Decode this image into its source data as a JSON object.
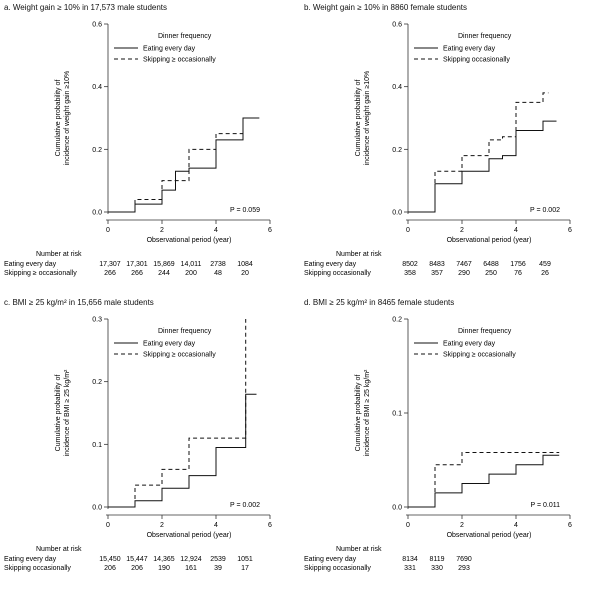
{
  "panels": [
    {
      "id": "a",
      "title": "a. Weight gain ≥ 10% in 17,573 male students",
      "chart_data": {
        "type": "line",
        "step": true,
        "ylabel": "Cumulative probability of incidence of weight gain ≥10%",
        "xlabel": "Observational period (year)",
        "xlim": [
          0,
          6
        ],
        "ylim": [
          0,
          0.6
        ],
        "xticks": [
          0,
          2,
          4,
          6
        ],
        "yticks": [
          0,
          0.2,
          0.4,
          0.6
        ],
        "ytick_labels": [
          "0.0",
          "0.2",
          "0.4",
          "0.6"
        ],
        "legend_title": "Dinner frequency",
        "series": [
          {
            "name": "Eating every day",
            "dash": "solid",
            "x": [
              0,
              1,
              2,
              2.5,
              3,
              4,
              5,
              5.6
            ],
            "y": [
              0,
              0.025,
              0.07,
              0.13,
              0.14,
              0.23,
              0.3,
              0.3
            ]
          },
          {
            "name": "Skipping ≥ occasionally",
            "dash": "dashed",
            "x": [
              0,
              1,
              2,
              3,
              4,
              5,
              5.6
            ],
            "y": [
              0,
              0.04,
              0.1,
              0.2,
              0.25,
              0.3,
              0.3
            ]
          }
        ],
        "pvalue": "P = 0.059",
        "risk": {
          "heading": "Number at risk",
          "rows": [
            {
              "label": "Eating every day",
              "values": [
                "17,307",
                "17,301",
                "15,869",
                "14,011",
                "2738",
                "1084"
              ]
            },
            {
              "label": "Skipping ≥ occasionally",
              "values": [
                "266",
                "266",
                "244",
                "200",
                "48",
                "20"
              ]
            }
          ]
        }
      }
    },
    {
      "id": "b",
      "title": "b. Weight gain ≥ 10% in 8860 female students",
      "chart_data": {
        "type": "line",
        "step": true,
        "ylabel": "Cumulative probability of incidence of weight gain ≥10%",
        "xlabel": "Observational period (year)",
        "xlim": [
          0,
          6
        ],
        "ylim": [
          0,
          0.6
        ],
        "xticks": [
          0,
          2,
          4,
          6
        ],
        "yticks": [
          0,
          0.2,
          0.4,
          0.6
        ],
        "ytick_labels": [
          "0.0",
          "0.2",
          "0.4",
          "0.6"
        ],
        "legend_title": "Dinner frequency",
        "series": [
          {
            "name": "Eating every day",
            "dash": "solid",
            "x": [
              0,
              1,
              2,
              3,
              3.5,
              4,
              5,
              5.5
            ],
            "y": [
              0,
              0.09,
              0.13,
              0.17,
              0.18,
              0.26,
              0.29,
              0.29
            ]
          },
          {
            "name": "Skipping occasionally",
            "dash": "dashed",
            "x": [
              0,
              1,
              2,
              3,
              3.5,
              4,
              5,
              5.2
            ],
            "y": [
              0,
              0.13,
              0.18,
              0.23,
              0.24,
              0.35,
              0.38,
              0.38
            ]
          }
        ],
        "pvalue": "P = 0.002",
        "risk": {
          "heading": "Number at risk",
          "rows": [
            {
              "label": "Eating every day",
              "values": [
                "8502",
                "8483",
                "7467",
                "6488",
                "1756",
                "459"
              ]
            },
            {
              "label": "Skipping occasionally",
              "values": [
                "358",
                "357",
                "290",
                "250",
                "76",
                "26"
              ]
            }
          ]
        }
      }
    },
    {
      "id": "c",
      "title": "c. BMI ≥ 25 kg/m² in 15,656 male students",
      "chart_data": {
        "type": "line",
        "step": true,
        "ylabel": "Cumulative probability of incidence of BMI ≥ 25 kg/m²",
        "xlabel": "Observational period (year)",
        "xlim": [
          0,
          6
        ],
        "ylim": [
          0,
          0.3
        ],
        "xticks": [
          0,
          2,
          4,
          6
        ],
        "yticks": [
          0,
          0.1,
          0.2,
          0.3
        ],
        "ytick_labels": [
          "0.0",
          "0.1",
          "0.2",
          "0.3"
        ],
        "legend_title": "Dinner frequency",
        "series": [
          {
            "name": "Eating every day",
            "dash": "solid",
            "x": [
              0,
              1,
              2,
              3,
              4,
              5.1,
              5.5
            ],
            "y": [
              0,
              0.01,
              0.03,
              0.05,
              0.095,
              0.18,
              0.18
            ]
          },
          {
            "name": "Skipping ≥ occasionally",
            "dash": "dashed",
            "x": [
              0,
              1,
              2,
              3,
              4,
              5.1,
              5.1
            ],
            "y": [
              0,
              0.035,
              0.06,
              0.11,
              0.11,
              0.3,
              0.3
            ]
          }
        ],
        "pvalue": "P = 0.002",
        "risk": {
          "heading": "Number at risk",
          "rows": [
            {
              "label": "Eating every day",
              "values": [
                "15,450",
                "15,447",
                "14,365",
                "12,924",
                "2539",
                "1051"
              ]
            },
            {
              "label": "Skipping occasionally",
              "values": [
                "206",
                "206",
                "190",
                "161",
                "39",
                "17"
              ]
            }
          ]
        }
      }
    },
    {
      "id": "d",
      "title": "d. BMI ≥ 25 kg/m² in 8465 female students",
      "chart_data": {
        "type": "line",
        "step": true,
        "ylabel": "Cumulative probability of incidence of BMI ≥ 25 kg/m²",
        "xlabel": "Observational period (year)",
        "xlim": [
          0,
          6
        ],
        "ylim": [
          0,
          0.2
        ],
        "xticks": [
          0,
          2,
          4,
          6
        ],
        "yticks": [
          0,
          0.1,
          0.2
        ],
        "ytick_labels": [
          "0.0",
          "0.1",
          "0.2"
        ],
        "legend_title": "Dinner frequency",
        "series": [
          {
            "name": "Eating every day",
            "dash": "solid",
            "x": [
              0,
              1,
              2,
              3,
              4,
              5,
              5.6
            ],
            "y": [
              0,
              0.015,
              0.025,
              0.035,
              0.045,
              0.055,
              0.055
            ]
          },
          {
            "name": "Skipping ≥ occasionally",
            "dash": "dashed",
            "x": [
              0,
              1,
              2,
              5.6
            ],
            "y": [
              0,
              0.045,
              0.058,
              0.058
            ]
          }
        ],
        "pvalue": "P = 0.011",
        "risk": {
          "heading": "Number at risk",
          "rows": [
            {
              "label": "Eating every day",
              "values": [
                "8134",
                "8119",
                "7690",
                "",
                "",
                ""
              ]
            },
            {
              "label": "Skipping occasionally",
              "values": [
                "331",
                "330",
                "293",
                "",
                "",
                ""
              ]
            }
          ]
        }
      }
    }
  ]
}
